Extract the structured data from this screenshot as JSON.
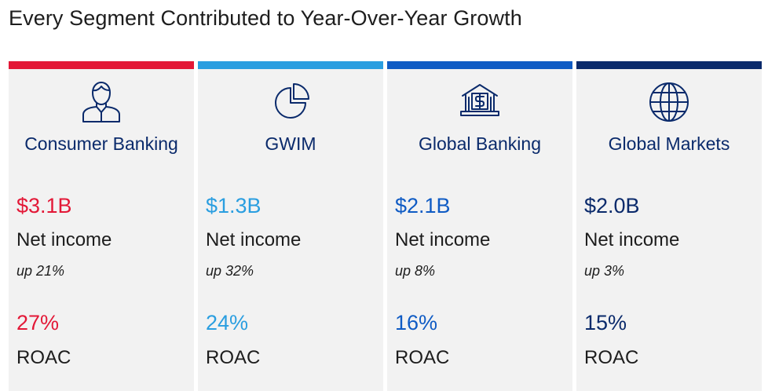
{
  "title": "Every Segment Contributed to Year-Over-Year Growth",
  "segments": [
    {
      "name": "Consumer Banking",
      "icon": "person-icon",
      "color": "#e31837",
      "net_income": "$3.1B",
      "net_income_label": "Net income",
      "change": "up 21%",
      "roac": "27%",
      "roac_label": "ROAC"
    },
    {
      "name": "GWIM",
      "icon": "pie-chart-icon",
      "color": "#2a9ee0",
      "net_income": "$1.3B",
      "net_income_label": "Net income",
      "change": "up 32%",
      "roac": "24%",
      "roac_label": "ROAC"
    },
    {
      "name": "Global Banking",
      "icon": "bank-icon",
      "color": "#0f5bc4",
      "net_income": "$2.1B",
      "net_income_label": "Net income",
      "change": "up 8%",
      "roac": "16%",
      "roac_label": "ROAC"
    },
    {
      "name": "Global Markets",
      "icon": "globe-icon",
      "color": "#0a2a6b",
      "net_income": "$2.0B",
      "net_income_label": "Net income",
      "change": "up 3%",
      "roac": "15%",
      "roac_label": "ROAC"
    }
  ]
}
